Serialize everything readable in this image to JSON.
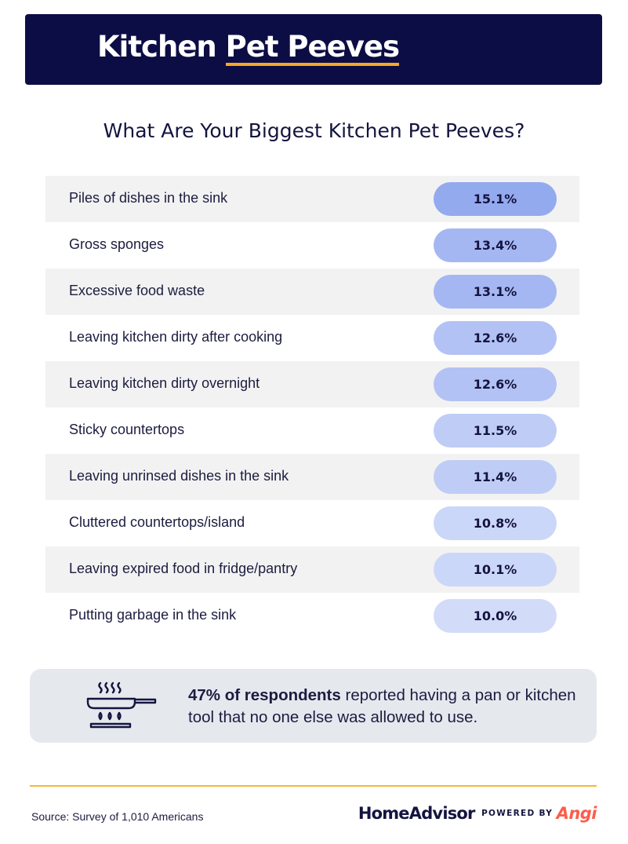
{
  "header": {
    "title_part1": "Kitchen ",
    "title_part2": "Pet Peeves"
  },
  "subtitle": "What Are Your Biggest Kitchen Pet Peeves?",
  "chart_data": {
    "type": "table",
    "title": "What Are Your Biggest Kitchen Pet Peeves?",
    "categories": [
      "Piles of dishes in the sink",
      "Gross sponges",
      "Excessive food waste",
      "Leaving kitchen dirty after cooking",
      "Leaving kitchen dirty overnight",
      "Sticky countertops",
      "Leaving unrinsed dishes in the sink",
      "Cluttered countertops/island",
      "Leaving expired food in fridge/pantry",
      "Putting garbage in the sink"
    ],
    "values": [
      15.1,
      13.4,
      13.1,
      12.6,
      12.6,
      11.5,
      11.4,
      10.8,
      10.1,
      10.0
    ],
    "value_labels": [
      "15.1%",
      "13.4%",
      "13.1%",
      "12.6%",
      "12.6%",
      "11.5%",
      "11.4%",
      "10.8%",
      "10.1%",
      "10.0%"
    ],
    "pill_colors": [
      "#94aaef",
      "#a5b7f2",
      "#a5b7f2",
      "#b3c2f4",
      "#b3c2f4",
      "#bfcdf6",
      "#bfcdf6",
      "#cbd7f8",
      "#cbd7f8",
      "#d2dcf9"
    ],
    "row_shading": "alternating, #f2f2f2 on odd rows"
  },
  "callout": {
    "bold": "47% of respondents",
    "rest": " reported having a pan or kitchen tool that no one else was allowed to use.",
    "icon": "stove-pan-icon"
  },
  "footer": {
    "source": "Source: Survey of 1,010 Americans",
    "brand": "HomeAdvisor",
    "powered_by": "POWERED BY",
    "partner": "Angi"
  },
  "colors": {
    "header_bg": "#0d0d45",
    "accent": "#f7a823",
    "text": "#1c1c40",
    "callout_bg": "#e5e9ee",
    "partner": "#ff5c4a"
  }
}
